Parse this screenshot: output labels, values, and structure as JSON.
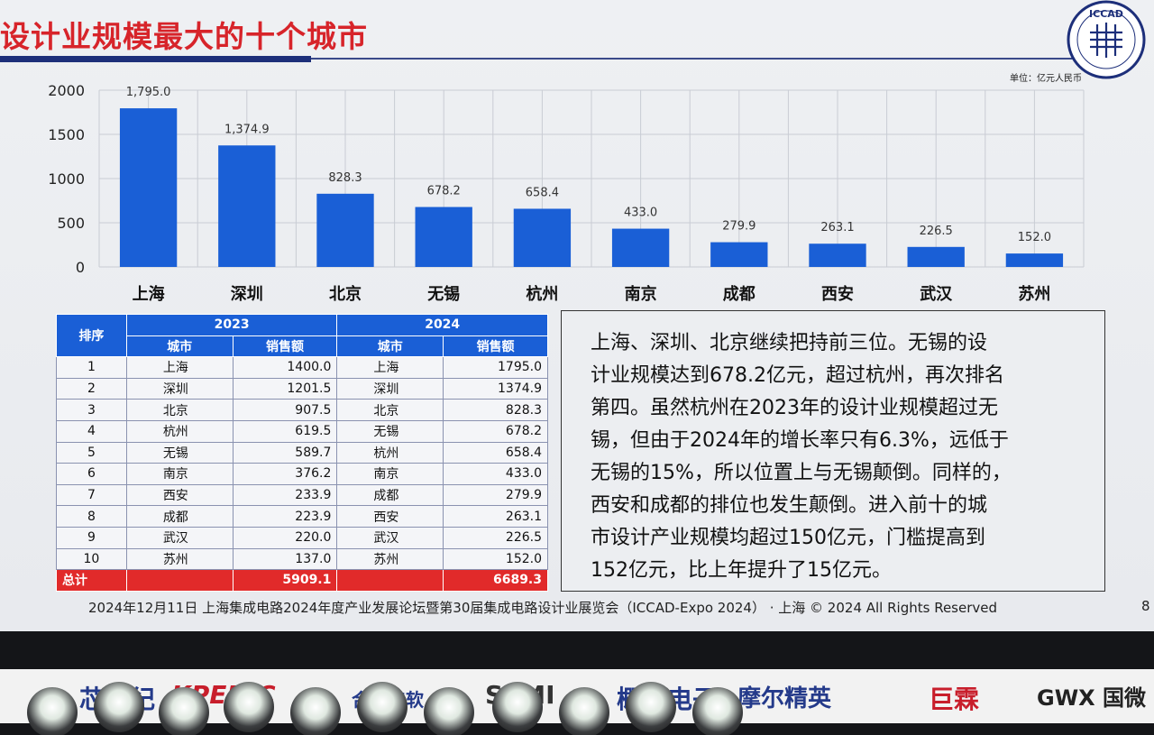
{
  "slide": {
    "title": "设计业规模最大的十个城市",
    "logo_text": "ICCAD",
    "unit": "单位：亿元人民币"
  },
  "chart_data": {
    "type": "bar",
    "title": "",
    "categories": [
      "上海",
      "深圳",
      "北京",
      "无锡",
      "杭州",
      "南京",
      "成都",
      "西安",
      "武汉",
      "苏州"
    ],
    "values": [
      1795.0,
      1374.9,
      828.3,
      678.2,
      658.4,
      433.0,
      279.9,
      263.1,
      226.5,
      152.0
    ],
    "data_labels": [
      "1,795.0",
      "1,374.9",
      "828.3",
      "678.2",
      "658.4",
      "433.0",
      "279.9",
      "263.1",
      "226.5",
      "152.0"
    ],
    "yticks": [
      0,
      500,
      1000,
      1500,
      2000
    ],
    "ylim": [
      0,
      2000
    ],
    "xlabel": "",
    "ylabel": "",
    "grid": true,
    "bar_color": "#1a5fd6"
  },
  "table": {
    "rank_header": "排序",
    "year_a": "2023",
    "year_b": "2024",
    "city_header": "城市",
    "sales_header": "销售额",
    "rows": [
      {
        "rank": "1",
        "city_a": "上海",
        "sales_a": "1400.0",
        "city_b": "上海",
        "sales_b": "1795.0"
      },
      {
        "rank": "2",
        "city_a": "深圳",
        "sales_a": "1201.5",
        "city_b": "深圳",
        "sales_b": "1374.9"
      },
      {
        "rank": "3",
        "city_a": "北京",
        "sales_a": "907.5",
        "city_b": "北京",
        "sales_b": "828.3"
      },
      {
        "rank": "4",
        "city_a": "杭州",
        "sales_a": "619.5",
        "city_b": "无锡",
        "sales_b": "678.2"
      },
      {
        "rank": "5",
        "city_a": "无锡",
        "sales_a": "589.7",
        "city_b": "杭州",
        "sales_b": "658.4"
      },
      {
        "rank": "6",
        "city_a": "南京",
        "sales_a": "376.2",
        "city_b": "南京",
        "sales_b": "433.0"
      },
      {
        "rank": "7",
        "city_a": "西安",
        "sales_a": "233.9",
        "city_b": "成都",
        "sales_b": "279.9"
      },
      {
        "rank": "8",
        "city_a": "成都",
        "sales_a": "223.9",
        "city_b": "西安",
        "sales_b": "263.1"
      },
      {
        "rank": "9",
        "city_a": "武汉",
        "sales_a": "220.0",
        "city_b": "武汉",
        "sales_b": "226.5"
      },
      {
        "rank": "10",
        "city_a": "苏州",
        "sales_a": "137.0",
        "city_b": "苏州",
        "sales_b": "152.0"
      }
    ],
    "total_label": "总计",
    "total_a": "5909.1",
    "total_b": "6689.3"
  },
  "summary_lines": [
    "上海、深圳、北京继续把持前三位。无锡的设",
    "计业规模达到678.2亿元，超过杭州，再次排名",
    "第四。虽然杭州在2023年的设计业规模超过无",
    "锡，但由于2024年的增长率只有6.3%，远低于",
    "无锡的15%，所以位置上与无锡颠倒。同样的，",
    "西安和成都的排位也发生颠倒。进入前十的城",
    "市设计产业规模均超过150亿元，门槛提高到",
    "152亿元，比上年提升了15亿元。"
  ],
  "footer": "2024年12月11日 上海集成电路2024年度产业发展论坛暨第30届集成电路设计业展览会（ICCAD-Expo 2024） · 上海 © 2024 All Rights Reserved",
  "page_number": "8",
  "sponsors": [
    "芯行纪",
    "KPEDIC",
    "合见工软",
    "SEMI",
    "概伦电子",
    "摩尔精英",
    "巨霖",
    "GWX 国微"
  ]
}
